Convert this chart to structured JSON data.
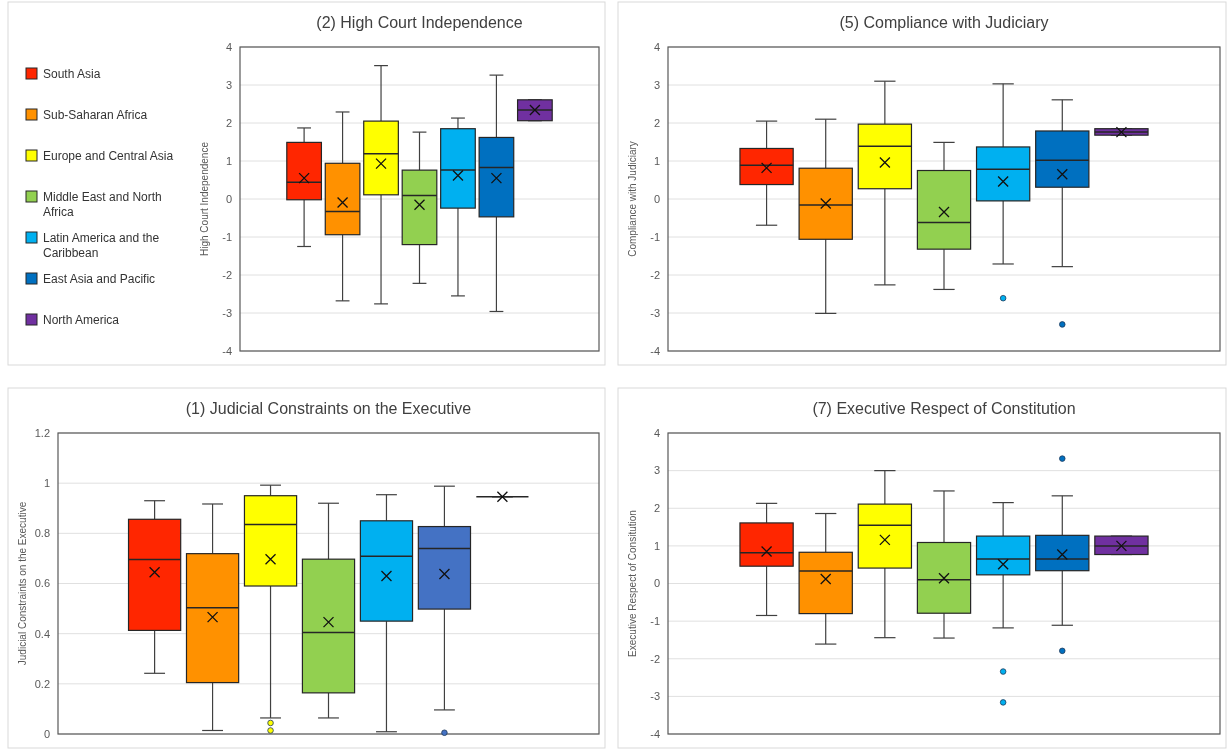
{
  "chart_data": [
    {
      "type": "box",
      "title": "(2) High Court Independence",
      "ylabel": "High Court Independence",
      "categories": [
        null
      ],
      "ylim": [
        -4,
        4
      ],
      "yticks": [
        -4,
        -3,
        -2,
        -1,
        0,
        1,
        2,
        3,
        4
      ],
      "grid": "y",
      "legend": "left",
      "series": [
        {
          "name": "South Asia",
          "color": "#ff2600",
          "boxes": [
            {
              "low": -1.25,
              "q1": -0.02,
              "median": 0.44,
              "q3": 1.49,
              "high": 1.87,
              "mean": 0.55
            }
          ]
        },
        {
          "name": "Sub-Saharan Africa",
          "color": "#ff9100",
          "boxes": [
            {
              "low": -2.68,
              "q1": -0.94,
              "median": -0.33,
              "q3": 0.94,
              "high": 2.29,
              "mean": -0.09
            }
          ]
        },
        {
          "name": "Europe and Central Asia",
          "color": "#ffff00",
          "boxes": [
            {
              "low": -2.76,
              "q1": 0.11,
              "median": 1.19,
              "q3": 2.05,
              "high": 3.51,
              "mean": 0.93
            }
          ]
        },
        {
          "name": "Middle East and North Africa",
          "color": "#92d050",
          "boxes": [
            {
              "low": -2.22,
              "q1": -1.2,
              "median": 0.09,
              "q3": 0.76,
              "high": 1.76,
              "mean": -0.15
            }
          ]
        },
        {
          "name": "Latin America and the Caribbean",
          "color": "#00b0f0",
          "boxes": [
            {
              "low": -2.55,
              "q1": -0.24,
              "median": 0.76,
              "q3": 1.85,
              "high": 2.13,
              "mean": 0.62
            }
          ]
        },
        {
          "name": "East Asia and Pacific",
          "color": "#0070c0",
          "boxes": [
            {
              "low": -2.96,
              "q1": -0.47,
              "median": 0.83,
              "q3": 1.62,
              "high": 3.26,
              "mean": 0.55
            }
          ]
        },
        {
          "name": "North America",
          "color": "#7030a0",
          "boxes": [
            {
              "low": 2.06,
              "q1": 2.06,
              "median": 2.34,
              "q3": 2.61,
              "high": 2.61,
              "mean": 2.34
            }
          ]
        }
      ]
    },
    {
      "type": "box",
      "title": "(5) Compliance with Judiciary",
      "ylabel": "Compliance with Judiciary",
      "categories": [
        null
      ],
      "ylim": [
        -4,
        4
      ],
      "yticks": [
        -4,
        -3,
        -2,
        -1,
        0,
        1,
        2,
        3,
        4
      ],
      "grid": "y",
      "series": [
        {
          "color": "#ff2600",
          "boxes": [
            {
              "low": -0.69,
              "q1": 0.38,
              "median": 0.89,
              "q3": 1.33,
              "high": 2.05,
              "mean": 0.82
            }
          ]
        },
        {
          "color": "#ff9100",
          "boxes": [
            {
              "low": -3.01,
              "q1": -1.06,
              "median": -0.16,
              "q3": 0.81,
              "high": 2.1,
              "mean": -0.12
            }
          ]
        },
        {
          "color": "#ffff00",
          "boxes": [
            {
              "low": -2.26,
              "q1": 0.27,
              "median": 1.39,
              "q3": 1.97,
              "high": 3.1,
              "mean": 0.96
            }
          ]
        },
        {
          "color": "#92d050",
          "boxes": [
            {
              "low": -2.38,
              "q1": -1.32,
              "median": -0.62,
              "q3": 0.75,
              "high": 1.49,
              "mean": -0.34
            }
          ]
        },
        {
          "color": "#00b0f0",
          "boxes": [
            {
              "low": -1.71,
              "q1": -0.05,
              "median": 0.78,
              "q3": 1.37,
              "high": 3.03,
              "mean": 0.46,
              "outliers": [
                -2.61
              ]
            }
          ]
        },
        {
          "color": "#0070c0",
          "boxes": [
            {
              "low": -1.78,
              "q1": 0.31,
              "median": 1.02,
              "q3": 1.79,
              "high": 2.61,
              "mean": 0.65,
              "outliers": [
                -3.3
              ]
            }
          ]
        },
        {
          "color": "#7030a0",
          "boxes": [
            {
              "low": 1.68,
              "q1": 1.68,
              "median": 1.76,
              "q3": 1.85,
              "high": 1.85,
              "mean": 1.76
            }
          ]
        }
      ]
    },
    {
      "type": "box",
      "title": "(1) Judicial Constraints on the Executive",
      "ylabel": "Judicial Constraints on the Executive",
      "categories": [
        null
      ],
      "ylim": [
        0,
        1.2
      ],
      "yticks": [
        0,
        0.2,
        0.4,
        0.6,
        0.8,
        1,
        1.2
      ],
      "grid": "y",
      "series": [
        {
          "color": "#ff2600",
          "boxes": [
            {
              "low": 0.242,
              "q1": 0.413,
              "median": 0.696,
              "q3": 0.856,
              "high": 0.93,
              "mean": 0.645
            }
          ]
        },
        {
          "color": "#ff9100",
          "boxes": [
            {
              "low": 0.014,
              "q1": 0.205,
              "median": 0.503,
              "q3": 0.719,
              "high": 0.917,
              "mean": 0.466
            }
          ]
        },
        {
          "color": "#ffff00",
          "boxes": [
            {
              "low": 0.064,
              "q1": 0.59,
              "median": 0.835,
              "q3": 0.95,
              "high": 0.992,
              "mean": 0.697,
              "outliers": [
                0.044,
                0.014
              ]
            }
          ]
        },
        {
          "color": "#92d050",
          "boxes": [
            {
              "low": 0.064,
              "q1": 0.164,
              "median": 0.405,
              "q3": 0.697,
              "high": 0.92,
              "mean": 0.446
            }
          ]
        },
        {
          "color": "#00b0f0",
          "boxes": [
            {
              "low": 0.009,
              "q1": 0.45,
              "median": 0.709,
              "q3": 0.85,
              "high": 0.954,
              "mean": 0.63
            }
          ]
        },
        {
          "color": "#4472c4",
          "boxes": [
            {
              "low": 0.096,
              "q1": 0.498,
              "median": 0.74,
              "q3": 0.827,
              "high": 0.988,
              "mean": 0.638,
              "outliers": [
                0.005
              ]
            }
          ]
        },
        {
          "color": "#262626",
          "boxes": [
            {
              "low": 0.946,
              "q1": 0.946,
              "median": 0.946,
              "q3": 0.946,
              "high": 0.946,
              "mean": 0.946
            }
          ]
        }
      ]
    },
    {
      "type": "box",
      "title": "(7) Executive Respect of Constitution",
      "ylabel": "Executive Respect of Consitution",
      "categories": [
        null
      ],
      "ylim": [
        -4,
        4
      ],
      "yticks": [
        -4,
        -3,
        -2,
        -1,
        0,
        1,
        2,
        3,
        4
      ],
      "grid": "y",
      "series": [
        {
          "color": "#ff2600",
          "boxes": [
            {
              "low": -0.85,
              "q1": 0.46,
              "median": 0.82,
              "q3": 1.61,
              "high": 2.13,
              "mean": 0.85
            }
          ]
        },
        {
          "color": "#ff9100",
          "boxes": [
            {
              "low": -1.61,
              "q1": -0.8,
              "median": 0.33,
              "q3": 0.83,
              "high": 1.86,
              "mean": 0.12
            }
          ]
        },
        {
          "color": "#ffff00",
          "boxes": [
            {
              "low": -1.44,
              "q1": 0.41,
              "median": 1.55,
              "q3": 2.11,
              "high": 3,
              "mean": 1.16
            }
          ]
        },
        {
          "color": "#92d050",
          "boxes": [
            {
              "low": -1.45,
              "q1": -0.79,
              "median": 0.1,
              "q3": 1.09,
              "high": 2.46,
              "mean": 0.14
            }
          ]
        },
        {
          "color": "#00b0f0",
          "boxes": [
            {
              "low": -1.18,
              "q1": 0.23,
              "median": 0.65,
              "q3": 1.26,
              "high": 2.15,
              "mean": 0.51,
              "outliers": [
                -2.34,
                -3.16
              ]
            }
          ]
        },
        {
          "color": "#0070c0",
          "boxes": [
            {
              "low": -1.11,
              "q1": 0.34,
              "median": 0.65,
              "q3": 1.28,
              "high": 2.33,
              "mean": 0.77,
              "outliers": [
                3.32,
                -1.79
              ]
            }
          ]
        },
        {
          "color": "#7030a0",
          "boxes": [
            {
              "low": 0.77,
              "q1": 0.77,
              "median": 1,
              "q3": 1.26,
              "high": 1.26,
              "mean": 1
            }
          ]
        }
      ]
    }
  ]
}
